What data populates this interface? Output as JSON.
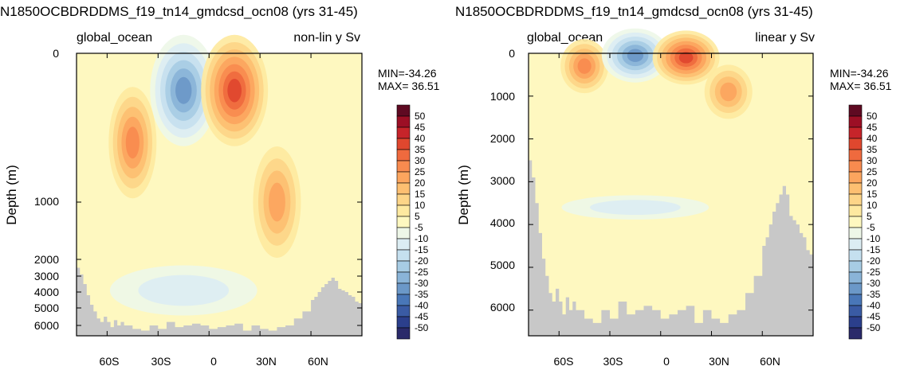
{
  "colors": {
    "background_field": "#fef8c0",
    "land": "#c8c8c8",
    "scale": [
      "#2a2a6a",
      "#2b3f8c",
      "#3a5ba4",
      "#4977b8",
      "#6b98c8",
      "#8ab4d8",
      "#a7cce4",
      "#c5e0ef",
      "#dcedf3",
      "#eef7e8",
      "#fef8c0",
      "#fee9a0",
      "#fdd588",
      "#fdbf71",
      "#fca55e",
      "#f88b4f",
      "#ef6a3e",
      "#e0472e",
      "#c6242a",
      "#9c0f25",
      "#5f0a22"
    ]
  },
  "chart_data": [
    {
      "type": "heatmap",
      "title": "N1850OCBDRDDMS_f19_tn14_gmdcsd_ocn08 (yrs 31-45)",
      "subtitle_left": "global_ocean",
      "subtitle_right": "non-lin y Sv",
      "ylabel": "Depth (m)",
      "xlabel": "",
      "y_scale": "non-linear",
      "y_ticks": [
        "0",
        "1000",
        "2000",
        "3000",
        "4000",
        "5000",
        "6000"
      ],
      "x_ticks": [
        "60S",
        "30S",
        "0",
        "30N",
        "60N"
      ],
      "min_text": "MIN=-34.26",
      "max_text": "MAX= 36.51",
      "colorbar_labels": [
        "50",
        "45",
        "40",
        "35",
        "30",
        "25",
        "20",
        "15",
        "10",
        "5",
        "-5",
        "-10",
        "-15",
        "-20",
        "-25",
        "-30",
        "-35",
        "-40",
        "-45",
        "-50"
      ],
      "min": -34.26,
      "max": 36.51,
      "features": [
        {
          "sign": "positive",
          "lat": -45,
          "depth": 600,
          "peak": 25
        },
        {
          "sign": "negative",
          "lat": -15,
          "depth": 250,
          "peak": -30
        },
        {
          "sign": "positive",
          "lat": 15,
          "depth": 250,
          "peak": 35
        },
        {
          "sign": "positive",
          "lat": 40,
          "depth": 1000,
          "peak": 20
        },
        {
          "sign": "negative",
          "lat": -15,
          "depth": 3900,
          "peak": -12
        }
      ]
    },
    {
      "type": "heatmap",
      "title": "N1850OCBDRDDMS_f19_tn14_gmdcsd_ocn08 (yrs 31-45)",
      "subtitle_left": "global_ocean",
      "subtitle_right": "linear y Sv",
      "ylabel": "Depth (m)",
      "xlabel": "",
      "y_scale": "linear",
      "y_ticks": [
        "0",
        "1000",
        "2000",
        "3000",
        "4000",
        "5000",
        "6000"
      ],
      "x_ticks": [
        "60S",
        "30S",
        "0",
        "30N",
        "60N"
      ],
      "min_text": "MIN=-34.26",
      "max_text": "MAX= 36.51",
      "colorbar_labels": [
        "50",
        "45",
        "40",
        "35",
        "30",
        "25",
        "20",
        "15",
        "10",
        "5",
        "-5",
        "-10",
        "-15",
        "-20",
        "-25",
        "-30",
        "-35",
        "-40",
        "-45",
        "-50"
      ],
      "min": -34.26,
      "max": 36.51,
      "features": [
        {
          "sign": "positive",
          "lat": -45,
          "depth": 300,
          "peak": 25
        },
        {
          "sign": "negative",
          "lat": -15,
          "depth": 50,
          "peak": -30
        },
        {
          "sign": "positive",
          "lat": 15,
          "depth": 100,
          "peak": 35
        },
        {
          "sign": "positive",
          "lat": 40,
          "depth": 900,
          "peak": 20
        },
        {
          "sign": "negative",
          "lat": -15,
          "depth": 3600,
          "peak": -12
        }
      ]
    }
  ]
}
